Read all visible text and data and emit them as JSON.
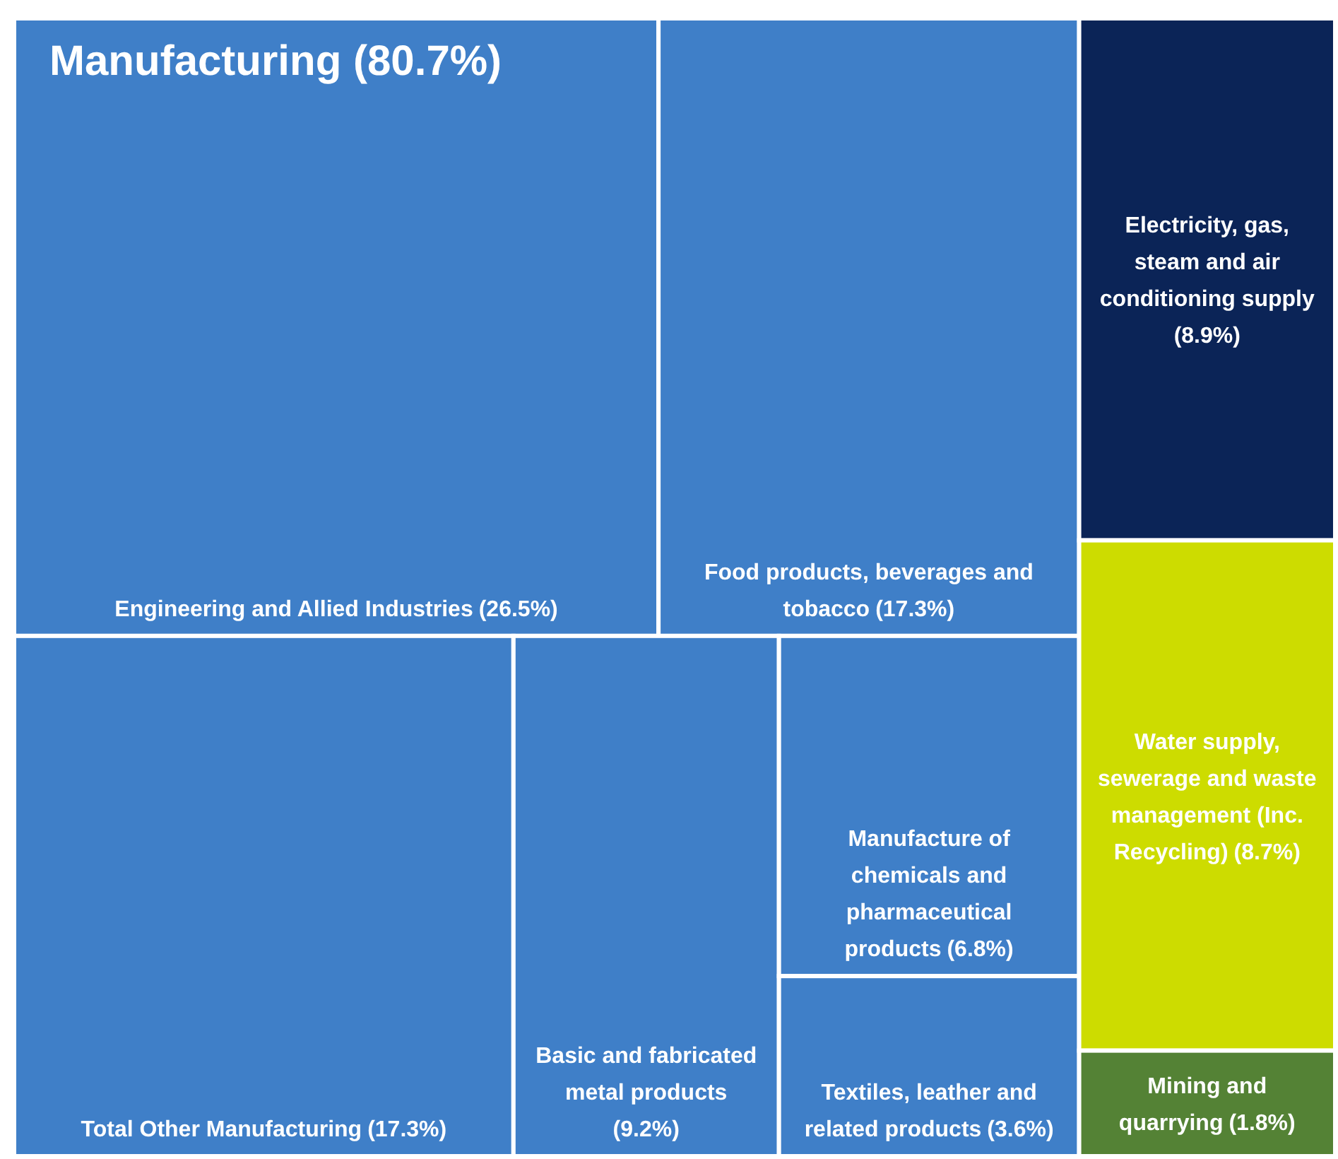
{
  "chart_data": {
    "type": "other",
    "title": "Manufacturing (80.7%)",
    "categories": [
      "Engineering and Allied Industries",
      "Food products, beverages and tobacco",
      "Total Other Manufacturing",
      "Basic and fabricated metal products",
      "Manufacture of chemicals and pharmaceutical products",
      "Textiles, leather and related products",
      "Electricity, gas, steam and air conditioning supply",
      "Water supply, sewerage and waste management (Inc. Recycling)",
      "Mining and quarrying"
    ],
    "values": [
      26.5,
      17.3,
      17.3,
      9.2,
      6.8,
      3.6,
      8.9,
      8.7,
      1.8
    ],
    "value_labels": [
      "(26.5%)",
      "(17.3%)",
      "(17.3%)",
      "(9.2%)",
      "(6.8%)",
      "(3.6%)",
      "(8.9%)",
      "(8.7%)",
      "(1.8%)"
    ],
    "colors": [
      "#3f7fc8",
      "#3f7fc8",
      "#3f7fc8",
      "#3f7fc8",
      "#3f7fc8",
      "#3f7fc8",
      "#0b2457",
      "#cddc00",
      "#548235"
    ]
  }
}
